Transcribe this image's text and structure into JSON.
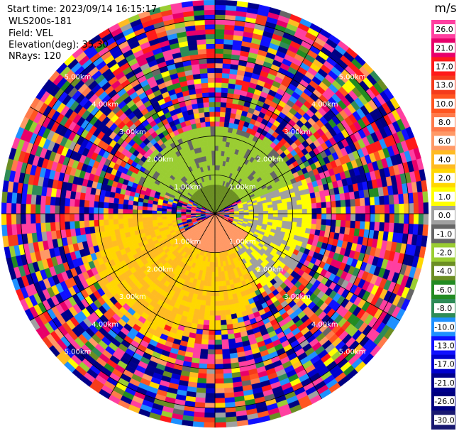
{
  "header": {
    "start_time": "Start time: 2023/09/14 16:15:17",
    "instrument": "WLS200s-181",
    "field": "Field: VEL",
    "elevation": "Elevation(deg): 35.30",
    "nrays": "NRays: 120"
  },
  "colorbar": {
    "unit": "m/s",
    "ticks": [
      "26.0",
      "21.0",
      "17.0",
      "13.0",
      "10.0",
      "8.0",
      "6.0",
      "4.0",
      "2.0",
      "1.0",
      "0.0",
      "-1.0",
      "-2.0",
      "-4.0",
      "-6.0",
      "-8.0",
      "-10.0",
      "-13.0",
      "-17.0",
      "-21.0",
      "-26.0",
      "-30.0"
    ],
    "colors": [
      "#ff3fa0",
      "#e8006a",
      "#ff1a1a",
      "#f53b1b",
      "#ff5520",
      "#ff7a4a",
      "#ff9966",
      "#ffbb22",
      "#ffd700",
      "#ffff00",
      "#a0a0a0",
      "#666666",
      "#9acd32",
      "#6b8e23",
      "#228b22",
      "#2e8b57",
      "#1e90ff",
      "#1010ff",
      "#0000cd",
      "#00008b",
      "#000080",
      "#191970"
    ]
  },
  "chart_data": {
    "type": "heatmap",
    "projection": "polar PPI",
    "field": "VEL",
    "unit": "m/s",
    "rays": 120,
    "range_rings_km": [
      1.0,
      2.0,
      3.0,
      4.0,
      5.0
    ],
    "ring_labels": [
      "1.00km",
      "2.00km",
      "3.00km",
      "4.00km",
      "5.00km"
    ],
    "max_range_km": 5.5,
    "grid": true,
    "summary_regions": [
      {
        "description": "near-range north sector",
        "range_km": [
          0,
          0.7
        ],
        "azimuth_deg": [
          300,
          60
        ],
        "value_ms": -5.0
      },
      {
        "description": "north-east / north-west sector",
        "range_km": [
          0.7,
          2.2
        ],
        "azimuth_deg": [
          290,
          70
        ],
        "value_ms": -2.5
      },
      {
        "description": "south sector near range",
        "range_km": [
          0,
          1.0
        ],
        "azimuth_deg": [
          120,
          240
        ],
        "value_ms": 5.0
      },
      {
        "description": "south sector mid range",
        "range_km": [
          1.0,
          3.6
        ],
        "azimuth_deg": [
          150,
          270
        ],
        "value_ms": 2.0
      },
      {
        "description": "east and west flanks",
        "range_km": [
          0.5,
          2.5
        ],
        "azimuth_deg": [
          70,
          150
        ],
        "value_ms": 0.0
      }
    ]
  }
}
